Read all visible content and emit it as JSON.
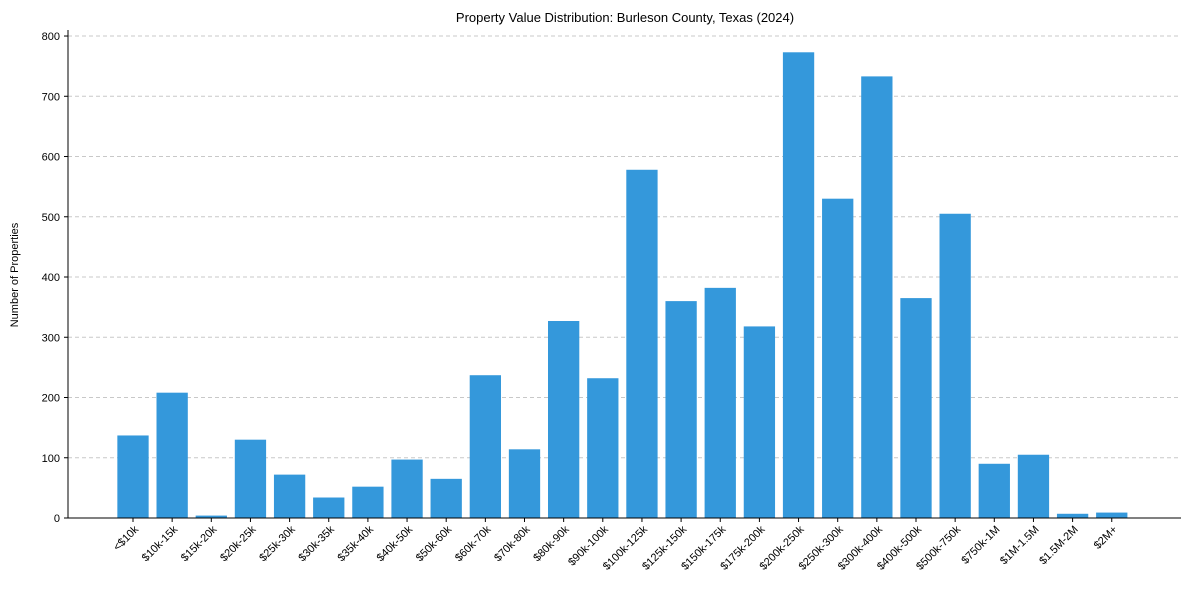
{
  "chart_data": {
    "type": "bar",
    "title": "Property Value Distribution: Burleson County, Texas (2024)",
    "xlabel": "",
    "ylabel": "Number of Properties",
    "ylim": [
      0,
      810
    ],
    "yticks": [
      0,
      100,
      200,
      300,
      400,
      500,
      600,
      700,
      800
    ],
    "grid": "y-dashed",
    "bar_color": "#3498db",
    "categories": [
      "<$10k",
      "$10k-15k",
      "$15k-20k",
      "$20k-25k",
      "$25k-30k",
      "$30k-35k",
      "$35k-40k",
      "$40k-50k",
      "$50k-60k",
      "$60k-70k",
      "$70k-80k",
      "$80k-90k",
      "$90k-100k",
      "$100k-125k",
      "$125k-150k",
      "$150k-175k",
      "$175k-200k",
      "$200k-250k",
      "$250k-300k",
      "$300k-400k",
      "$400k-500k",
      "$500k-750k",
      "$750k-1M",
      "$1M-1.5M",
      "$1.5M-2M",
      "$2M+"
    ],
    "values": [
      137,
      208,
      4,
      130,
      72,
      34,
      52,
      97,
      65,
      237,
      114,
      327,
      232,
      578,
      360,
      382,
      318,
      773,
      530,
      733,
      365,
      505,
      90,
      105,
      7,
      9
    ]
  }
}
